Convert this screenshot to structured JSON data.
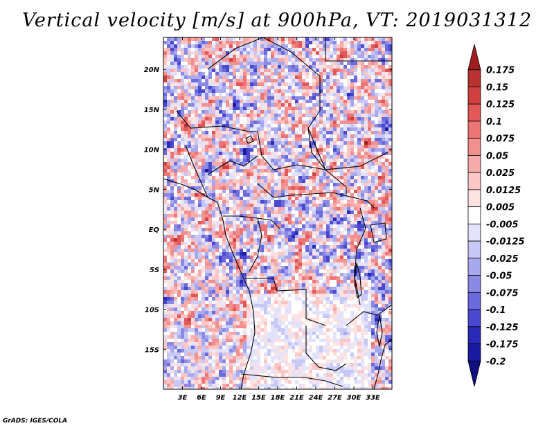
{
  "title": "Vertical velocity [m/s] at 900hPa, VT: 2019031312",
  "credit": "GrADS: IGES/COLA",
  "chart_data": {
    "type": "heatmap",
    "variable": "Vertical velocity",
    "units": "m/s",
    "level": "900hPa",
    "valid_time": "2019031312",
    "lon_range": [
      0,
      36
    ],
    "lat_range": [
      -20,
      24
    ],
    "lon_ticks": [
      3,
      6,
      9,
      12,
      15,
      18,
      21,
      24,
      27,
      30,
      33
    ],
    "lon_tick_labels": [
      "3E",
      "6E",
      "9E",
      "12E",
      "15E",
      "18E",
      "21E",
      "24E",
      "27E",
      "30E",
      "33E"
    ],
    "lat_ticks": [
      20,
      15,
      10,
      5,
      0,
      -5,
      -10,
      -15
    ],
    "lat_tick_labels": [
      "20N",
      "15N",
      "10N",
      "5N",
      "EQ",
      "5S",
      "10S",
      "15S"
    ],
    "colorbar": {
      "labels": [
        "0.175",
        "0.15",
        "0.125",
        "0.1",
        "0.075",
        "0.05",
        "0.025",
        "0.0125",
        "0.005",
        "-0.005",
        "-0.0125",
        "-0.025",
        "-0.05",
        "-0.075",
        "-0.1",
        "-0.125",
        "-0.175",
        "-0.2"
      ],
      "colors": [
        "#a01e1e",
        "#b83232",
        "#d04040",
        "#e25858",
        "#ec7474",
        "#f29090",
        "#f6aaaa",
        "#fac6c6",
        "#fde2e2",
        "#ffffff",
        "#e2e2fd",
        "#c8c8f6",
        "#a8a8ee",
        "#8a8ae6",
        "#6a6add",
        "#4848d0",
        "#2a2ab8",
        "#1a1aa0",
        "#101080"
      ]
    }
  }
}
